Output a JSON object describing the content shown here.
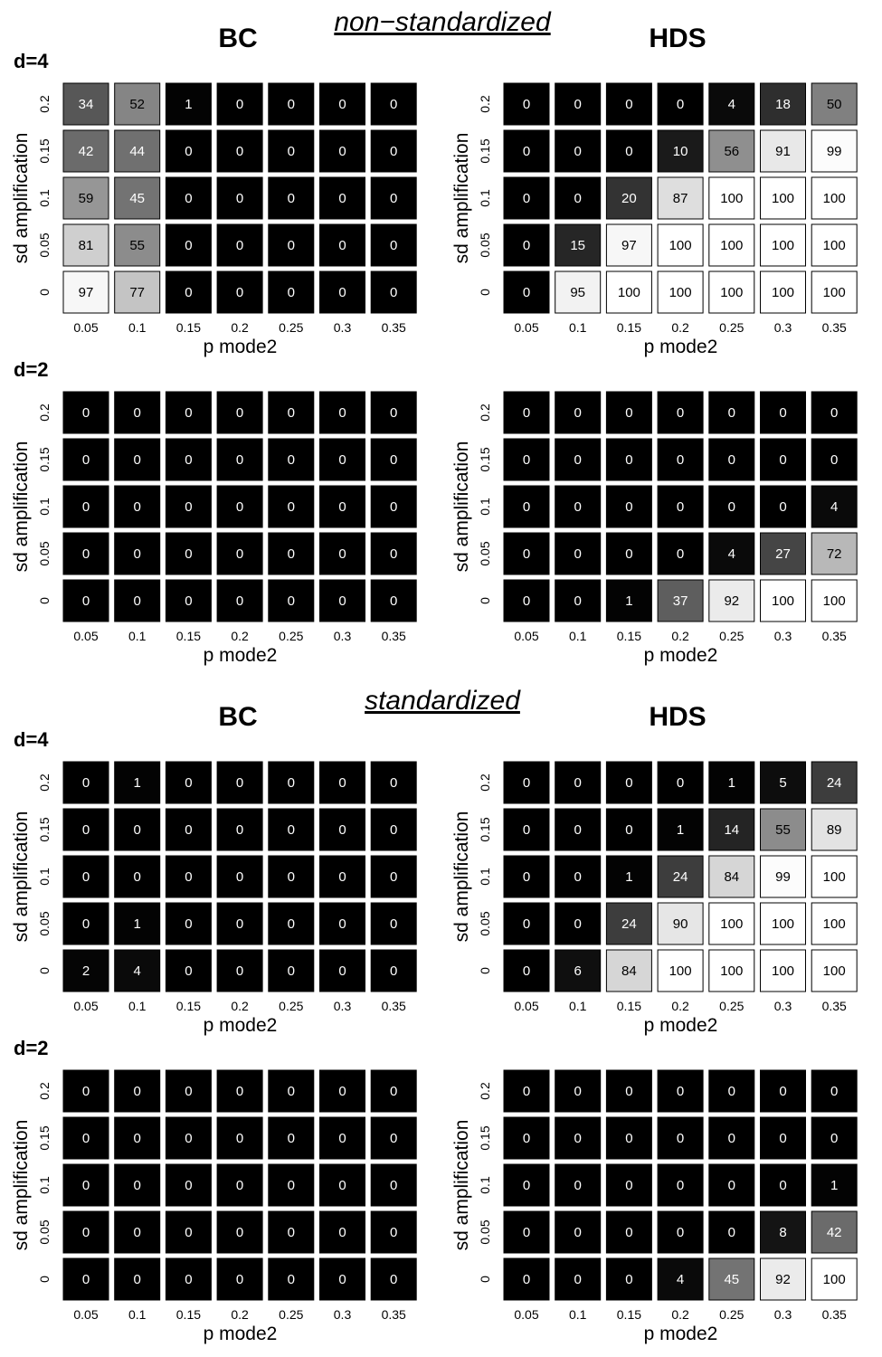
{
  "sections": [
    {
      "title": "non−standardized",
      "methods": [
        "BC",
        "HDS"
      ],
      "rows": [
        {
          "d_label": "d=4"
        },
        {
          "d_label": "d=2"
        }
      ]
    },
    {
      "title": "standardized",
      "methods": [
        "BC",
        "HDS"
      ],
      "rows": [
        {
          "d_label": "d=4"
        },
        {
          "d_label": "d=2"
        }
      ]
    }
  ],
  "colors": {
    "low": "#000000",
    "high": "#ffffff",
    "light_text": "#ffffff",
    "dark_text": "#000000"
  },
  "chart_data": [
    {
      "type": "heatmap",
      "section": "non-standardized",
      "method": "BC",
      "d": "d=4",
      "xlabel": "p mode2",
      "ylabel": "sd amplification",
      "x": [
        "0.05",
        "0.1",
        "0.15",
        "0.2",
        "0.25",
        "0.3",
        "0.35"
      ],
      "y": [
        "0.2",
        "0.15",
        "0.1",
        "0.05",
        "0"
      ],
      "values": [
        [
          34,
          52,
          1,
          0,
          0,
          0,
          0
        ],
        [
          42,
          44,
          0,
          0,
          0,
          0,
          0
        ],
        [
          59,
          45,
          0,
          0,
          0,
          0,
          0
        ],
        [
          81,
          55,
          0,
          0,
          0,
          0,
          0
        ],
        [
          97,
          77,
          0,
          0,
          0,
          0,
          0
        ]
      ],
      "value_range": [
        0,
        100
      ]
    },
    {
      "type": "heatmap",
      "section": "non-standardized",
      "method": "HDS",
      "d": "d=4",
      "xlabel": "p mode2",
      "ylabel": "sd amplification",
      "x": [
        "0.05",
        "0.1",
        "0.15",
        "0.2",
        "0.25",
        "0.3",
        "0.35"
      ],
      "y": [
        "0.2",
        "0.15",
        "0.1",
        "0.05",
        "0"
      ],
      "values": [
        [
          0,
          0,
          0,
          0,
          4,
          18,
          50
        ],
        [
          0,
          0,
          0,
          10,
          56,
          91,
          99
        ],
        [
          0,
          0,
          20,
          87,
          100,
          100,
          100
        ],
        [
          0,
          15,
          97,
          100,
          100,
          100,
          100
        ],
        [
          0,
          95,
          100,
          100,
          100,
          100,
          100
        ]
      ],
      "value_range": [
        0,
        100
      ]
    },
    {
      "type": "heatmap",
      "section": "non-standardized",
      "method": "BC",
      "d": "d=2",
      "xlabel": "p mode2",
      "ylabel": "sd amplification",
      "x": [
        "0.05",
        "0.1",
        "0.15",
        "0.2",
        "0.25",
        "0.3",
        "0.35"
      ],
      "y": [
        "0.2",
        "0.15",
        "0.1",
        "0.05",
        "0"
      ],
      "values": [
        [
          0,
          0,
          0,
          0,
          0,
          0,
          0
        ],
        [
          0,
          0,
          0,
          0,
          0,
          0,
          0
        ],
        [
          0,
          0,
          0,
          0,
          0,
          0,
          0
        ],
        [
          0,
          0,
          0,
          0,
          0,
          0,
          0
        ],
        [
          0,
          0,
          0,
          0,
          0,
          0,
          0
        ]
      ],
      "value_range": [
        0,
        100
      ]
    },
    {
      "type": "heatmap",
      "section": "non-standardized",
      "method": "HDS",
      "d": "d=2",
      "xlabel": "p mode2",
      "ylabel": "sd amplification",
      "x": [
        "0.05",
        "0.1",
        "0.15",
        "0.2",
        "0.25",
        "0.3",
        "0.35"
      ],
      "y": [
        "0.2",
        "0.15",
        "0.1",
        "0.05",
        "0"
      ],
      "values": [
        [
          0,
          0,
          0,
          0,
          0,
          0,
          0
        ],
        [
          0,
          0,
          0,
          0,
          0,
          0,
          0
        ],
        [
          0,
          0,
          0,
          0,
          0,
          0,
          4
        ],
        [
          0,
          0,
          0,
          0,
          4,
          27,
          72
        ],
        [
          0,
          0,
          1,
          37,
          92,
          100,
          100
        ]
      ],
      "value_range": [
        0,
        100
      ]
    },
    {
      "type": "heatmap",
      "section": "standardized",
      "method": "BC",
      "d": "d=4",
      "xlabel": "p mode2",
      "ylabel": "sd amplification",
      "x": [
        "0.05",
        "0.1",
        "0.15",
        "0.2",
        "0.25",
        "0.3",
        "0.35"
      ],
      "y": [
        "0.2",
        "0.15",
        "0.1",
        "0.05",
        "0"
      ],
      "values": [
        [
          0,
          1,
          0,
          0,
          0,
          0,
          0
        ],
        [
          0,
          0,
          0,
          0,
          0,
          0,
          0
        ],
        [
          0,
          0,
          0,
          0,
          0,
          0,
          0
        ],
        [
          0,
          1,
          0,
          0,
          0,
          0,
          0
        ],
        [
          2,
          4,
          0,
          0,
          0,
          0,
          0
        ]
      ],
      "value_range": [
        0,
        100
      ]
    },
    {
      "type": "heatmap",
      "section": "standardized",
      "method": "HDS",
      "d": "d=4",
      "xlabel": "p mode2",
      "ylabel": "sd amplification",
      "x": [
        "0.05",
        "0.1",
        "0.15",
        "0.2",
        "0.25",
        "0.3",
        "0.35"
      ],
      "y": [
        "0.2",
        "0.15",
        "0.1",
        "0.05",
        "0"
      ],
      "values": [
        [
          0,
          0,
          0,
          0,
          1,
          5,
          24
        ],
        [
          0,
          0,
          0,
          1,
          14,
          55,
          89
        ],
        [
          0,
          0,
          1,
          24,
          84,
          99,
          100
        ],
        [
          0,
          0,
          24,
          90,
          100,
          100,
          100
        ],
        [
          0,
          6,
          84,
          100,
          100,
          100,
          100
        ]
      ],
      "value_range": [
        0,
        100
      ]
    },
    {
      "type": "heatmap",
      "section": "standardized",
      "method": "BC",
      "d": "d=2",
      "xlabel": "p mode2",
      "ylabel": "sd amplification",
      "x": [
        "0.05",
        "0.1",
        "0.15",
        "0.2",
        "0.25",
        "0.3",
        "0.35"
      ],
      "y": [
        "0.2",
        "0.15",
        "0.1",
        "0.05",
        "0"
      ],
      "values": [
        [
          0,
          0,
          0,
          0,
          0,
          0,
          0
        ],
        [
          0,
          0,
          0,
          0,
          0,
          0,
          0
        ],
        [
          0,
          0,
          0,
          0,
          0,
          0,
          0
        ],
        [
          0,
          0,
          0,
          0,
          0,
          0,
          0
        ],
        [
          0,
          0,
          0,
          0,
          0,
          0,
          0
        ]
      ],
      "value_range": [
        0,
        100
      ]
    },
    {
      "type": "heatmap",
      "section": "standardized",
      "method": "HDS",
      "d": "d=2",
      "xlabel": "p mode2",
      "ylabel": "sd amplification",
      "x": [
        "0.05",
        "0.1",
        "0.15",
        "0.2",
        "0.25",
        "0.3",
        "0.35"
      ],
      "y": [
        "0.2",
        "0.15",
        "0.1",
        "0.05",
        "0"
      ],
      "values": [
        [
          0,
          0,
          0,
          0,
          0,
          0,
          0
        ],
        [
          0,
          0,
          0,
          0,
          0,
          0,
          0
        ],
        [
          0,
          0,
          0,
          0,
          0,
          0,
          1
        ],
        [
          0,
          0,
          0,
          0,
          0,
          8,
          42
        ],
        [
          0,
          0,
          0,
          4,
          45,
          92,
          100
        ]
      ],
      "value_range": [
        0,
        100
      ]
    }
  ]
}
